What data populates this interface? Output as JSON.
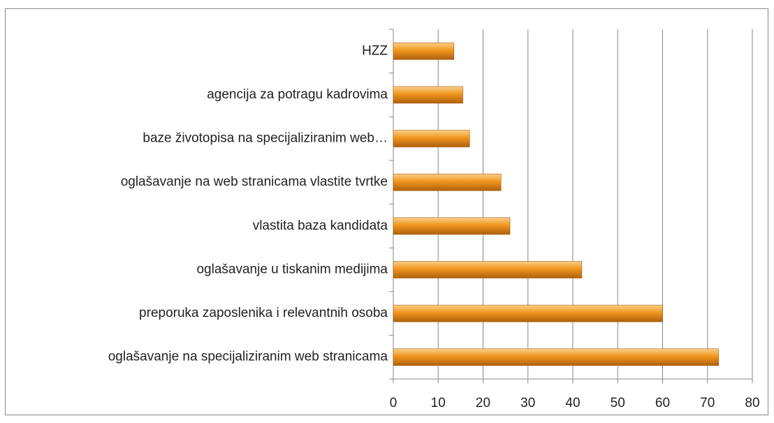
{
  "chart_data": {
    "type": "hbar",
    "categories": [
      "HZZ",
      "agencija za potragu kadrovima",
      "baze životopisa na specijaliziranim web…",
      "oglašavanje na web stranicama vlastite tvrtke",
      "vlastita baza kandidata",
      "oglašavanje u tiskanim medijima",
      "preporuka zaposlenika i relevantnih osoba",
      "oglašavanje na specijaliziranim web stranicama"
    ],
    "values": [
      13.5,
      15.5,
      17,
      24,
      26,
      42,
      60,
      72.5
    ],
    "color": "#f0961e",
    "xlim": [
      0,
      80
    ],
    "xticks": [
      0,
      10,
      20,
      30,
      40,
      50,
      60,
      70,
      80
    ],
    "grid": true
  }
}
